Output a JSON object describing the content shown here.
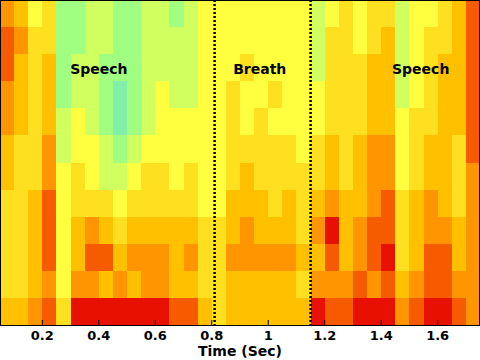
{
  "chart_data": {
    "type": "heatmap",
    "xlabel": "Time (Sec)",
    "xlim": [
      0.05,
      1.75
    ],
    "xticks": [
      0.2,
      0.4,
      0.6,
      0.8,
      1,
      1.2,
      1.4,
      1.6
    ],
    "tick_labels": "x",
    "grid": false,
    "zlim": [
      0,
      10
    ],
    "boundaries": [
      0.81,
      1.15
    ],
    "annotations": [
      {
        "text": "Speech",
        "x": 0.4
      },
      {
        "text": "Breath",
        "x": 0.97
      },
      {
        "text": "Speech",
        "x": 1.54
      }
    ],
    "cells": [
      [
        7,
        6,
        4,
        5,
        2,
        2,
        3,
        3,
        2,
        2,
        3,
        3,
        2,
        3,
        4,
        4,
        4,
        4,
        4,
        4,
        4,
        4,
        3,
        4,
        5,
        4,
        5,
        5,
        3,
        4,
        4,
        5,
        6,
        8
      ],
      [
        8,
        7,
        5,
        5,
        2,
        2,
        3,
        3,
        2,
        2,
        3,
        3,
        3,
        3,
        4,
        4,
        4,
        4,
        4,
        4,
        4,
        4,
        3,
        5,
        5,
        4,
        5,
        6,
        3,
        4,
        5,
        5,
        6,
        8
      ],
      [
        8,
        6,
        5,
        6,
        2,
        3,
        3,
        2,
        2,
        2,
        3,
        3,
        3,
        3,
        4,
        4,
        4,
        5,
        4,
        4,
        4,
        4,
        3,
        5,
        5,
        5,
        6,
        6,
        3,
        4,
        5,
        6,
        6,
        8
      ],
      [
        7,
        6,
        5,
        6,
        2,
        3,
        3,
        2,
        1,
        2,
        3,
        4,
        3,
        3,
        4,
        4,
        5,
        4,
        4,
        5,
        4,
        4,
        4,
        5,
        5,
        5,
        6,
        6,
        3,
        4,
        5,
        6,
        6,
        8
      ],
      [
        7,
        6,
        5,
        6,
        3,
        4,
        3,
        2,
        1,
        2,
        3,
        4,
        4,
        4,
        4,
        4,
        5,
        4,
        5,
        4,
        4,
        4,
        4,
        5,
        5,
        5,
        6,
        6,
        4,
        5,
        5,
        6,
        6,
        8
      ],
      [
        6,
        5,
        5,
        7,
        3,
        4,
        4,
        3,
        2,
        3,
        4,
        4,
        4,
        4,
        4,
        4,
        5,
        5,
        5,
        5,
        5,
        4,
        5,
        6,
        5,
        6,
        7,
        7,
        4,
        5,
        6,
        6,
        5,
        8
      ],
      [
        6,
        5,
        5,
        7,
        4,
        5,
        4,
        3,
        3,
        4,
        5,
        5,
        4,
        5,
        4,
        4,
        5,
        6,
        5,
        5,
        5,
        5,
        5,
        6,
        5,
        6,
        7,
        7,
        4,
        5,
        6,
        6,
        5,
        7
      ],
      [
        5,
        5,
        6,
        8,
        4,
        5,
        5,
        5,
        4,
        5,
        5,
        5,
        5,
        5,
        4,
        4,
        6,
        6,
        6,
        5,
        6,
        5,
        6,
        7,
        6,
        6,
        7,
        8,
        5,
        6,
        7,
        6,
        5,
        7
      ],
      [
        5,
        5,
        6,
        8,
        4,
        6,
        7,
        6,
        5,
        6,
        6,
        6,
        6,
        6,
        5,
        5,
        6,
        7,
        6,
        6,
        6,
        5,
        7,
        9,
        6,
        7,
        8,
        8,
        5,
        6,
        7,
        7,
        6,
        7
      ],
      [
        5,
        5,
        6,
        8,
        4,
        6,
        8,
        8,
        6,
        7,
        7,
        7,
        6,
        7,
        5,
        5,
        7,
        7,
        7,
        7,
        7,
        6,
        6,
        8,
        6,
        7,
        8,
        9,
        5,
        6,
        8,
        8,
        6,
        7
      ],
      [
        5,
        5,
        6,
        7,
        4,
        7,
        7,
        6,
        7,
        6,
        7,
        7,
        6,
        6,
        5,
        5,
        6,
        6,
        6,
        6,
        6,
        5,
        7,
        7,
        7,
        8,
        7,
        8,
        6,
        7,
        8,
        8,
        7,
        7
      ],
      [
        6,
        6,
        7,
        8,
        5,
        9,
        9,
        9,
        9,
        9,
        9,
        9,
        8,
        8,
        6,
        5,
        6,
        6,
        6,
        6,
        6,
        6,
        9,
        8,
        8,
        9,
        9,
        9,
        7,
        8,
        9,
        9,
        8,
        7
      ]
    ]
  }
}
